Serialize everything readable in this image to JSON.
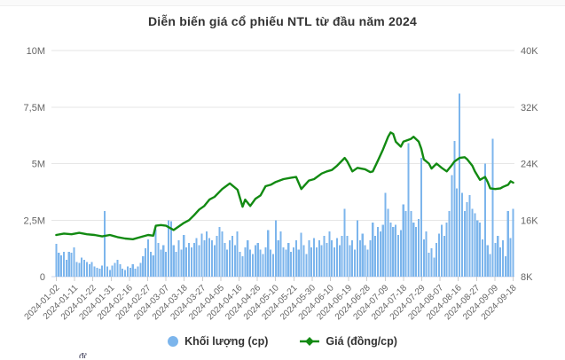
{
  "page": {
    "title": "Diễn biến giá cổ phiếu NTL từ đầu năm 2024"
  },
  "legend": {
    "volume_label": "Khối lượng (cp)",
    "price_label": "Giá (đồng/cp)",
    "position": "bottom-center"
  },
  "colors": {
    "volume_bar": "#7cb5ec",
    "price_line": "#128a12",
    "grid": "#e6e6e6",
    "axis_line": "#ccd6eb",
    "tick_mark": "#cccccc",
    "axis_text": "#666666",
    "title_text": "#333333",
    "legend_text": "#333333"
  },
  "chart_data": {
    "type": "bar",
    "subtype": "column-volume with overlaid price line",
    "title": "Diễn biến giá cổ phiếu NTL từ đầu năm 2024",
    "grid": "horizontal-only",
    "legend_position": "bottom",
    "bar_count_estimate": 180,
    "x_tick_labels": [
      "2024-01-02",
      "2024-01-11",
      "2024-01-22",
      "2024-01-31",
      "2024-02-16",
      "2024-02-27",
      "2024-03-07",
      "2024-03-18",
      "2024-03-27",
      "2024-04-05",
      "2024-04-16",
      "2024-04-26",
      "2024-05-10",
      "2024-05-21",
      "2024-05-30",
      "2024-06-10",
      "2024-06-19",
      "2024-06-28",
      "2024-07-09",
      "2024-07-18",
      "2024-07-29",
      "2024-08-07",
      "2024-08-16",
      "2024-08-27",
      "2024-09-09",
      "2024-09-18"
    ],
    "y_left_axis": {
      "ticks_bottom_up": [
        "0",
        "2,5M",
        "5M",
        "7,5M",
        "10M"
      ],
      "range_million_shares": [
        0,
        10
      ]
    },
    "y_right_axis": {
      "ticks_bottom_up": [
        "8K",
        "16K",
        "24K",
        "32K",
        "40K"
      ],
      "range_thousand_dong": [
        8,
        40
      ]
    },
    "series": [
      {
        "name": "Khối lượng (cp)",
        "type": "bar",
        "unit": "million shares (estimated from pixels)",
        "values": [
          1.45,
          1.05,
          0.95,
          1.1,
          0.75,
          1.1,
          1.05,
          1.3,
          0.65,
          0.6,
          0.85,
          0.75,
          0.65,
          0.55,
          0.65,
          0.45,
          0.4,
          0.35,
          0.5,
          2.9,
          0.45,
          0.3,
          0.5,
          0.6,
          0.75,
          0.55,
          0.35,
          0.3,
          0.45,
          0.4,
          0.55,
          0.35,
          0.45,
          0.6,
          0.9,
          1.25,
          1.65,
          1.1,
          0.95,
          2.1,
          1.5,
          1.2,
          1.4,
          1.1,
          2.5,
          2.45,
          1.4,
          1.1,
          1.6,
          1.2,
          1.85,
          1.3,
          1.5,
          1.3,
          1.5,
          1.7,
          1.4,
          1.9,
          1.6,
          2.0,
          1.7,
          1.6,
          1.4,
          1.8,
          2.2,
          2.0,
          1.5,
          1.2,
          1.6,
          1.8,
          1.4,
          2.0,
          1.1,
          0.9,
          1.3,
          1.6,
          1.2,
          1.0,
          1.4,
          1.5,
          1.2,
          1.0,
          1.3,
          2.05,
          1.2,
          1.0,
          2.5,
          1.6,
          2.0,
          1.3,
          1.2,
          1.5,
          1.1,
          1.3,
          1.6,
          1.2,
          1.95,
          1.4,
          1.0,
          1.6,
          1.3,
          1.7,
          1.3,
          1.6,
          1.4,
          1.8,
          1.5,
          2.0,
          1.6,
          1.3,
          1.7,
          1.4,
          1.8,
          3.0,
          1.8,
          1.4,
          1.6,
          1.2,
          2.5,
          1.6,
          1.9,
          1.4,
          1.2,
          1.6,
          2.4,
          1.8,
          2.2,
          2.0,
          2.3,
          3.7,
          3.0,
          2.4,
          2.2,
          2.3,
          1.85,
          2.05,
          3.2,
          2.9,
          5.9,
          2.9,
          2.4,
          2.2,
          2.55,
          5.25,
          1.65,
          2.0,
          1.05,
          1.25,
          0.85,
          1.5,
          1.9,
          2.3,
          1.8,
          2.4,
          2.9,
          4.5,
          6.0,
          3.9,
          8.1,
          3.7,
          2.9,
          3.3,
          3.6,
          3.0,
          2.8,
          2.5,
          2.4,
          1.65,
          5.0,
          1.4,
          1.0,
          6.1,
          1.5,
          1.8,
          1.3,
          1.6,
          0.9,
          2.9,
          1.7,
          3.0
        ]
      },
      {
        "name": "Giá (đồng/cp)",
        "type": "line",
        "unit": "thousand đồng (estimated from pixels)",
        "points_index_value": [
          [
            0,
            13.9
          ],
          [
            3,
            14.1
          ],
          [
            6,
            14.0
          ],
          [
            9,
            14.2
          ],
          [
            12,
            14.0
          ],
          [
            15,
            13.9
          ],
          [
            18,
            13.7
          ],
          [
            21,
            13.9
          ],
          [
            24,
            13.6
          ],
          [
            27,
            13.4
          ],
          [
            30,
            13.3
          ],
          [
            33,
            13.6
          ],
          [
            36,
            13.9
          ],
          [
            38,
            13.8
          ],
          [
            39,
            15.2
          ],
          [
            41,
            15.3
          ],
          [
            43,
            15.2
          ],
          [
            45,
            14.8
          ],
          [
            46,
            14.6
          ],
          [
            48,
            15.1
          ],
          [
            50,
            15.6
          ],
          [
            52,
            16.0
          ],
          [
            54,
            16.7
          ],
          [
            56,
            17.5
          ],
          [
            58,
            18.0
          ],
          [
            60,
            18.9
          ],
          [
            62,
            19.3
          ],
          [
            65,
            20.4
          ],
          [
            68,
            21.2
          ],
          [
            69,
            20.9
          ],
          [
            71,
            20.3
          ],
          [
            73,
            17.9
          ],
          [
            74,
            18.9
          ],
          [
            76,
            18.0
          ],
          [
            78,
            19.0
          ],
          [
            80,
            19.5
          ],
          [
            82,
            20.8
          ],
          [
            84,
            21.0
          ],
          [
            86,
            21.4
          ],
          [
            89,
            21.8
          ],
          [
            92,
            22.0
          ],
          [
            94,
            22.1
          ],
          [
            96,
            20.4
          ],
          [
            99,
            21.6
          ],
          [
            101,
            21.8
          ],
          [
            104,
            22.6
          ],
          [
            106,
            22.9
          ],
          [
            108,
            23.1
          ],
          [
            110,
            23.7
          ],
          [
            113,
            24.8
          ],
          [
            114,
            24.3
          ],
          [
            116,
            22.9
          ],
          [
            118,
            23.4
          ],
          [
            121,
            23.2
          ],
          [
            123,
            22.8
          ],
          [
            124,
            22.9
          ],
          [
            126,
            24.4
          ],
          [
            128,
            26.0
          ],
          [
            130,
            27.8
          ],
          [
            131,
            28.4
          ],
          [
            132,
            28.2
          ],
          [
            133,
            27.1
          ],
          [
            135,
            26.4
          ],
          [
            136,
            27.1
          ],
          [
            139,
            27.5
          ],
          [
            140,
            27.8
          ],
          [
            142,
            27.1
          ],
          [
            143,
            26.1
          ],
          [
            144,
            24.6
          ],
          [
            146,
            24.0
          ],
          [
            147,
            23.3
          ],
          [
            149,
            24.0
          ],
          [
            151,
            23.4
          ],
          [
            153,
            22.9
          ],
          [
            155,
            23.8
          ],
          [
            156,
            24.3
          ],
          [
            158,
            24.8
          ],
          [
            160,
            24.9
          ],
          [
            161,
            24.6
          ],
          [
            163,
            23.7
          ],
          [
            164,
            22.9
          ],
          [
            166,
            21.7
          ],
          [
            168,
            22.1
          ],
          [
            169,
            21.4
          ],
          [
            170,
            20.5
          ],
          [
            172,
            20.4
          ],
          [
            174,
            20.5
          ],
          [
            175,
            20.7
          ],
          [
            177,
            21.0
          ],
          [
            178,
            21.5
          ],
          [
            179,
            21.3
          ]
        ]
      }
    ]
  }
}
